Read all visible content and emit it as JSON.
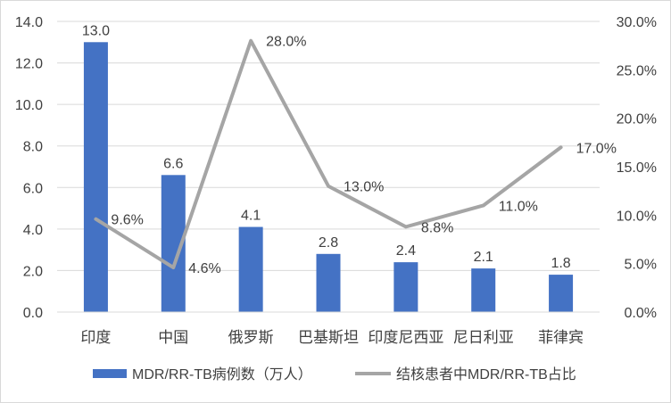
{
  "chart_data": {
    "type": "bar",
    "categories": [
      "印度",
      "中国",
      "俄罗斯",
      "巴基斯坦",
      "印度尼西亚",
      "尼日利亚",
      "菲律宾"
    ],
    "series": [
      {
        "name": "MDR/RR-TB病例数（万人）",
        "type": "bar",
        "axis": "left",
        "color": "#4472c4",
        "values": [
          13.0,
          6.6,
          4.1,
          2.8,
          2.4,
          2.1,
          1.8
        ],
        "labels": [
          "13.0",
          "6.6",
          "4.1",
          "2.8",
          "2.4",
          "2.1",
          "1.8"
        ]
      },
      {
        "name": "结核患者中MDR/RR-TB占比",
        "type": "line",
        "axis": "right",
        "color": "#a5a5a5",
        "values": [
          9.6,
          4.6,
          28.0,
          13.0,
          8.8,
          11.0,
          17.0
        ],
        "labels": [
          "9.6%",
          "4.6%",
          "28.0%",
          "13.0%",
          "8.8%",
          "11.0%",
          "17.0%"
        ]
      }
    ],
    "y_left": {
      "range": [
        0,
        14
      ],
      "ticks": [
        0,
        2,
        4,
        6,
        8,
        10,
        12,
        14
      ],
      "tick_labels": [
        "0.0",
        "2.0",
        "4.0",
        "6.0",
        "8.0",
        "10.0",
        "12.0",
        "14.0"
      ]
    },
    "y_right": {
      "range": [
        0,
        30
      ],
      "ticks": [
        0,
        5,
        10,
        15,
        20,
        25,
        30
      ],
      "tick_labels": [
        "0.0%",
        "5.0%",
        "10.0%",
        "15.0%",
        "20.0%",
        "25.0%",
        "30.0%"
      ]
    },
    "grid": true,
    "legend_position": "bottom"
  }
}
